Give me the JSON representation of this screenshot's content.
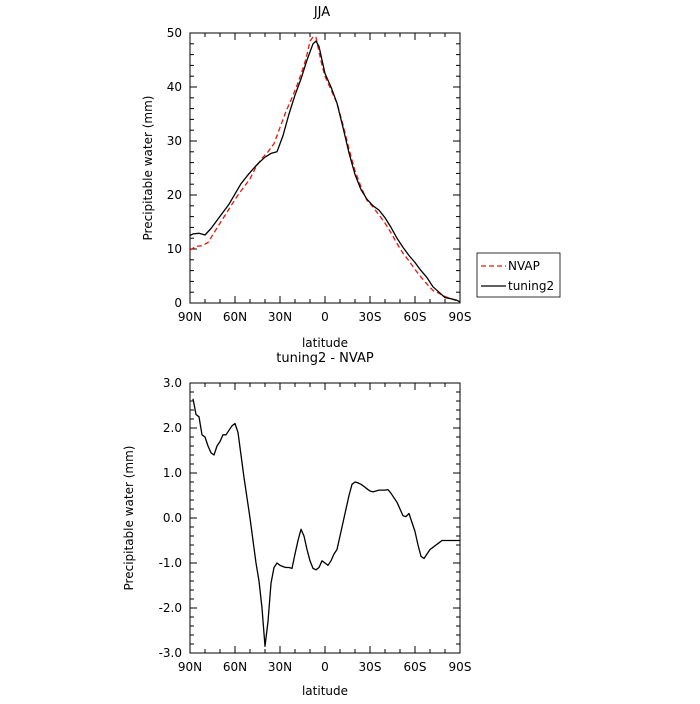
{
  "chart_data": [
    {
      "type": "line",
      "title": "JJA",
      "xlabel": "latitude",
      "ylabel": "Precipitable water (mm)",
      "xlim": [
        90,
        -90
      ],
      "ylim": [
        0,
        50
      ],
      "xticks": [
        90,
        60,
        30,
        0,
        -30,
        -60,
        -90
      ],
      "xtick_labels": [
        "90N",
        "60N",
        "30N",
        "0",
        "30S",
        "60S",
        "90S"
      ],
      "yticks": [
        0,
        10,
        20,
        30,
        40,
        50
      ],
      "ytick_labels": [
        "0",
        "10",
        "20",
        "30",
        "40",
        "50"
      ],
      "legend_position": "right",
      "series": [
        {
          "name": "NVAP",
          "color": "#e8170a",
          "style": "dashed",
          "x": [
            90,
            86,
            82,
            78,
            74,
            70,
            66,
            62,
            58,
            54,
            50,
            46,
            42,
            38,
            34,
            30,
            26,
            22,
            18,
            14,
            12,
            10,
            8,
            6,
            4,
            2,
            0,
            -4,
            -8,
            -12,
            -16,
            -20,
            -24,
            -28,
            -32,
            -36,
            -40,
            -44,
            -48,
            -52,
            -56,
            -60,
            -64,
            -68,
            -72,
            -76,
            -80,
            -84,
            -88,
            -90
          ],
          "y": [
            9.8,
            10.5,
            10.6,
            11.2,
            13.0,
            14.8,
            16.5,
            18.3,
            20.0,
            21.5,
            23.0,
            25.2,
            26.8,
            28.0,
            29.5,
            32.5,
            35.5,
            38.0,
            40.8,
            44.0,
            46.0,
            48.5,
            49.3,
            49.2,
            46.5,
            44.0,
            42.0,
            39.5,
            37.0,
            33.0,
            28.5,
            24.5,
            21.5,
            19.0,
            17.8,
            16.3,
            14.8,
            13.0,
            11.0,
            9.2,
            7.8,
            6.2,
            4.8,
            3.5,
            2.3,
            1.8,
            1.2,
            0.8,
            0.4,
            0.3
          ]
        },
        {
          "name": "tuning2",
          "color": "#000000",
          "style": "solid",
          "x": [
            90,
            88,
            84,
            80,
            76,
            72,
            68,
            64,
            60,
            56,
            52,
            48,
            44,
            40,
            36,
            32,
            28,
            24,
            20,
            16,
            12,
            8,
            6,
            4,
            2,
            0,
            -4,
            -8,
            -12,
            -16,
            -20,
            -24,
            -28,
            -32,
            -36,
            -40,
            -44,
            -48,
            -52,
            -56,
            -60,
            -64,
            -68,
            -72,
            -76,
            -80,
            -84,
            -88,
            -90
          ],
          "y": [
            12.5,
            12.8,
            12.9,
            12.6,
            13.8,
            15.3,
            16.8,
            18.3,
            20.2,
            22.1,
            23.5,
            24.8,
            26.0,
            27.0,
            27.7,
            28.0,
            31.0,
            35.0,
            38.5,
            41.5,
            45.0,
            48.0,
            48.5,
            47.5,
            45.0,
            42.5,
            40.0,
            37.0,
            32.5,
            27.8,
            23.8,
            21.0,
            19.2,
            18.0,
            17.2,
            15.8,
            14.0,
            12.0,
            10.3,
            8.8,
            7.5,
            6.0,
            4.7,
            3.0,
            2.0,
            1.0,
            0.8,
            0.5,
            0.2
          ]
        }
      ]
    },
    {
      "type": "line",
      "title": "tuning2 - NVAP",
      "xlabel": "latitude",
      "ylabel": "Precipitable water (mm)",
      "xlim": [
        90,
        -90
      ],
      "ylim": [
        -3.0,
        3.0
      ],
      "xticks": [
        90,
        60,
        30,
        0,
        -30,
        -60,
        -90
      ],
      "xtick_labels": [
        "90N",
        "60N",
        "30N",
        "0",
        "30S",
        "60S",
        "90S"
      ],
      "yticks": [
        3.0,
        2.0,
        1.0,
        0.0,
        -1.0,
        -2.0,
        -3.0
      ],
      "ytick_labels": [
        "3.0",
        "2.0",
        "1.0",
        "0.0",
        "-1.0",
        "-2.0",
        "-3.0"
      ],
      "series": [
        {
          "name": "tuning2 - NVAP",
          "color": "#000000",
          "style": "solid",
          "x": [
            88,
            86,
            84,
            82,
            80,
            78,
            76,
            74,
            72,
            70,
            68,
            66,
            64,
            62,
            60,
            58,
            56,
            54,
            52,
            50,
            48,
            46,
            44,
            42,
            40,
            38,
            36,
            34,
            32,
            30,
            28,
            26,
            24,
            22,
            20,
            18,
            16,
            14,
            12,
            10,
            8,
            6,
            4,
            2,
            0,
            -2,
            -4,
            -6,
            -8,
            -10,
            -12,
            -14,
            -16,
            -18,
            -20,
            -22,
            -24,
            -26,
            -28,
            -30,
            -32,
            -34,
            -36,
            -38,
            -40,
            -42,
            -44,
            -46,
            -48,
            -50,
            -52,
            -54,
            -56,
            -58,
            -60,
            -62,
            -64,
            -66,
            -68,
            -70,
            -72,
            -74,
            -76,
            -78,
            -80,
            -82,
            -84,
            -86,
            -88,
            -90
          ],
          "y": [
            2.65,
            2.3,
            2.25,
            1.85,
            1.8,
            1.6,
            1.45,
            1.4,
            1.6,
            1.7,
            1.85,
            1.85,
            1.95,
            2.05,
            2.1,
            1.9,
            1.4,
            0.9,
            0.45,
            0.0,
            -0.5,
            -1.0,
            -1.4,
            -2.0,
            -2.85,
            -2.3,
            -1.45,
            -1.1,
            -1.0,
            -1.05,
            -1.08,
            -1.1,
            -1.1,
            -1.12,
            -0.8,
            -0.5,
            -0.25,
            -0.4,
            -0.7,
            -0.95,
            -1.12,
            -1.15,
            -1.1,
            -0.95,
            -1.0,
            -1.05,
            -0.95,
            -0.8,
            -0.7,
            -0.4,
            -0.1,
            0.2,
            0.5,
            0.75,
            0.8,
            0.78,
            0.75,
            0.7,
            0.65,
            0.6,
            0.58,
            0.6,
            0.62,
            0.62,
            0.62,
            0.63,
            0.55,
            0.45,
            0.35,
            0.2,
            0.05,
            0.03,
            0.1,
            -0.1,
            -0.3,
            -0.6,
            -0.85,
            -0.9,
            -0.8,
            -0.7,
            -0.65,
            -0.6,
            -0.55,
            -0.5,
            -0.5,
            -0.5,
            -0.5,
            -0.5,
            -0.5,
            -0.5
          ]
        }
      ]
    }
  ]
}
